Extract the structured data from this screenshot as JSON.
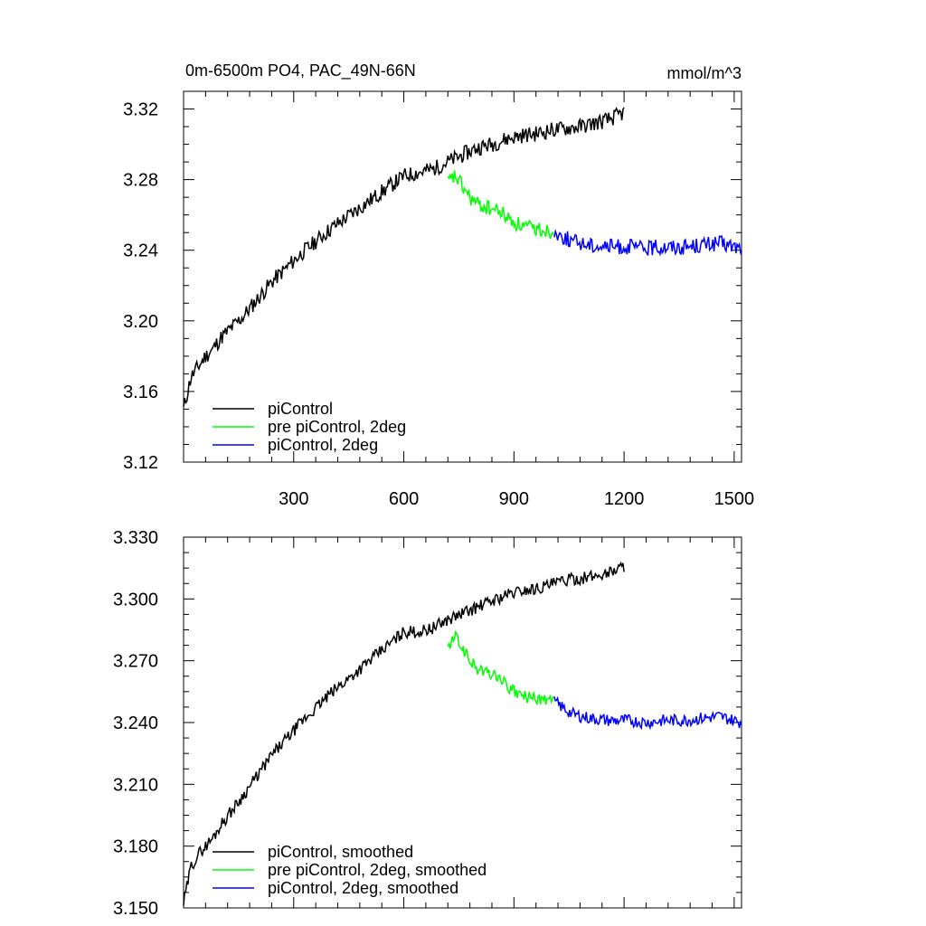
{
  "chart_data": [
    {
      "type": "line",
      "title": "0m-6500m PO4, PAC_49N-66N",
      "units": "mmol/m^3",
      "xlim": [
        0,
        1520
      ],
      "ylim": [
        3.12,
        3.33
      ],
      "x_ticks": [
        300,
        600,
        900,
        1200,
        1500
      ],
      "x_tick_labels": [
        "300",
        "600",
        "900",
        "1200",
        "1500"
      ],
      "y_ticks": [
        3.12,
        3.16,
        3.2,
        3.24,
        3.28,
        3.32
      ],
      "y_tick_labels": [
        "3.12",
        "3.16",
        "3.20",
        "3.24",
        "3.28",
        "3.32"
      ],
      "legend_position": "bottom-left",
      "series": [
        {
          "name": "piControl",
          "color": "#000000",
          "x": [
            0,
            20,
            40,
            60,
            80,
            100,
            130,
            160,
            200,
            240,
            280,
            320,
            360,
            400,
            440,
            480,
            520,
            560,
            600,
            640,
            680,
            720,
            760,
            800,
            840,
            880,
            920,
            960,
            1000,
            1040,
            1080,
            1120,
            1160,
            1200
          ],
          "y": [
            3.15,
            3.168,
            3.174,
            3.18,
            3.184,
            3.19,
            3.196,
            3.202,
            3.212,
            3.222,
            3.23,
            3.238,
            3.245,
            3.252,
            3.258,
            3.264,
            3.27,
            3.276,
            3.282,
            3.284,
            3.286,
            3.29,
            3.294,
            3.298,
            3.3,
            3.303,
            3.305,
            3.306,
            3.308,
            3.309,
            3.31,
            3.312,
            3.314,
            3.318
          ]
        },
        {
          "name": "pre piControl, 2deg",
          "color": "#00ff00",
          "x": [
            720,
            740,
            760,
            780,
            800,
            830,
            860,
            890,
            920,
            950,
            980,
            1010
          ],
          "y": [
            3.278,
            3.282,
            3.276,
            3.27,
            3.266,
            3.264,
            3.262,
            3.257,
            3.254,
            3.252,
            3.252,
            3.25
          ]
        },
        {
          "name": "piControl, 2deg",
          "color": "#0000ff",
          "x": [
            1010,
            1060,
            1110,
            1160,
            1210,
            1260,
            1310,
            1360,
            1410,
            1460,
            1520
          ],
          "y": [
            3.25,
            3.245,
            3.243,
            3.242,
            3.242,
            3.241,
            3.242,
            3.242,
            3.243,
            3.244,
            3.241
          ]
        }
      ]
    },
    {
      "type": "line",
      "xlim": [
        0,
        1520
      ],
      "ylim": [
        3.15,
        3.33
      ],
      "x_ticks": [
        300,
        600,
        900,
        1200,
        1500
      ],
      "y_ticks": [
        3.15,
        3.18,
        3.21,
        3.24,
        3.27,
        3.3,
        3.33
      ],
      "y_tick_labels": [
        "3.150",
        "3.180",
        "3.210",
        "3.240",
        "3.270",
        "3.300",
        "3.330"
      ],
      "legend_position": "bottom-left",
      "series": [
        {
          "name": "piControl, smoothed",
          "color": "#000000",
          "x": [
            0,
            20,
            40,
            60,
            80,
            100,
            130,
            160,
            200,
            240,
            280,
            320,
            360,
            400,
            440,
            480,
            520,
            560,
            600,
            640,
            680,
            720,
            760,
            800,
            840,
            880,
            920,
            960,
            1000,
            1040,
            1080,
            1120,
            1160,
            1200
          ],
          "y": [
            3.152,
            3.17,
            3.176,
            3.18,
            3.184,
            3.19,
            3.197,
            3.204,
            3.214,
            3.224,
            3.232,
            3.24,
            3.247,
            3.254,
            3.26,
            3.266,
            3.272,
            3.278,
            3.284,
            3.284,
            3.286,
            3.29,
            3.293,
            3.296,
            3.299,
            3.302,
            3.304,
            3.305,
            3.307,
            3.309,
            3.31,
            3.311,
            3.313,
            3.316
          ]
        },
        {
          "name": "pre piControl, 2deg, smoothed",
          "color": "#00ff00",
          "x": [
            720,
            740,
            760,
            780,
            800,
            830,
            860,
            890,
            920,
            950,
            980,
            1010
          ],
          "y": [
            3.276,
            3.282,
            3.276,
            3.27,
            3.266,
            3.264,
            3.262,
            3.256,
            3.253,
            3.252,
            3.251,
            3.25
          ]
        },
        {
          "name": "piControl, 2deg, smoothed",
          "color": "#0000ff",
          "x": [
            1010,
            1060,
            1110,
            1160,
            1210,
            1260,
            1310,
            1360,
            1410,
            1460,
            1520
          ],
          "y": [
            3.25,
            3.244,
            3.242,
            3.241,
            3.241,
            3.24,
            3.241,
            3.241,
            3.242,
            3.243,
            3.24
          ]
        }
      ]
    }
  ]
}
